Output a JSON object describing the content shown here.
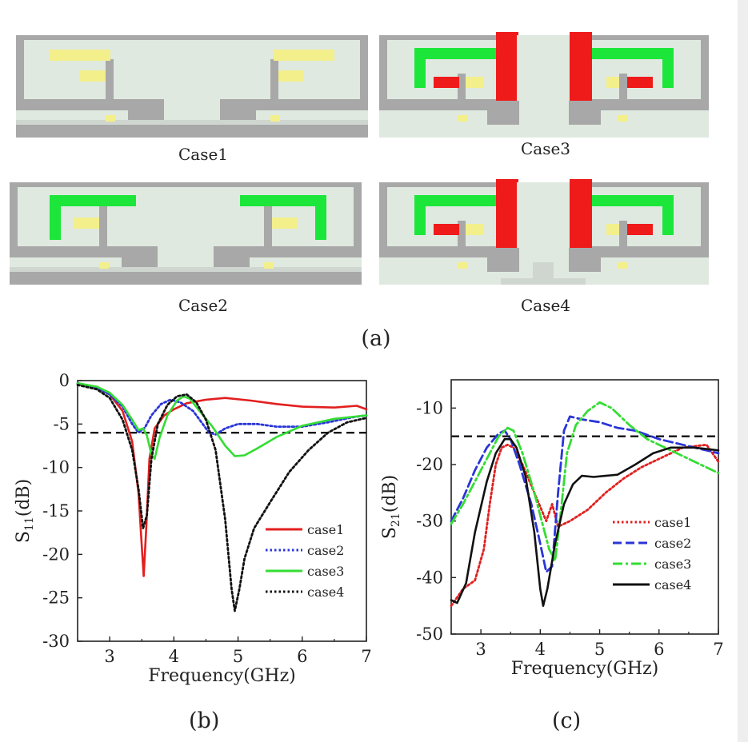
{
  "figure": {
    "panel_a": {
      "label": "(a)",
      "captions": [
        "Case1",
        "Case2",
        "Case3",
        "Case4"
      ]
    },
    "panel_b_label": "(b)",
    "panel_c_label": "(c)"
  },
  "colors": {
    "board_fill": "#dfe9e0",
    "metal_gray": "#a8a8a8",
    "strip_green": "#1de63a",
    "stub_red": "#ef1b1b",
    "pad_yellow": "#f3ef8a",
    "case1": "#e21f1f",
    "case2": "#2a35d8",
    "case3": "#33dd33",
    "case4": "#111111"
  },
  "chart_data": [
    {
      "type": "line",
      "panel": "(b)",
      "title": "",
      "xlabel": "Frequency(GHz)",
      "ylabel": "S11(dB)",
      "ylabel_main": "S",
      "ylabel_sub": "11",
      "ylabel_unit": "(dB)",
      "xlim": [
        2.5,
        7
      ],
      "ylim": [
        -30,
        0
      ],
      "xticks": [
        3,
        4,
        5,
        6,
        7
      ],
      "yticks": [
        0,
        -5,
        -10,
        -15,
        -20,
        -25,
        -30
      ],
      "grid": false,
      "legend_position": "lower-right",
      "reference_line": -6,
      "series": [
        {
          "name": "case1",
          "color": "#e21f1f",
          "dash": "solid",
          "points": [
            [
              2.5,
              -0.3
            ],
            [
              2.8,
              -0.8
            ],
            [
              3.0,
              -1.6
            ],
            [
              3.2,
              -3.5
            ],
            [
              3.35,
              -7
            ],
            [
              3.45,
              -13
            ],
            [
              3.5,
              -19
            ],
            [
              3.53,
              -22.5
            ],
            [
              3.57,
              -17
            ],
            [
              3.62,
              -9
            ],
            [
              3.7,
              -5.5
            ],
            [
              3.85,
              -4
            ],
            [
              4.0,
              -3.3
            ],
            [
              4.2,
              -2.6
            ],
            [
              4.5,
              -2.2
            ],
            [
              4.8,
              -2.0
            ],
            [
              5.2,
              -2.3
            ],
            [
              5.6,
              -2.7
            ],
            [
              6.0,
              -3.0
            ],
            [
              6.5,
              -3.1
            ],
            [
              6.85,
              -2.9
            ],
            [
              7.0,
              -3.3
            ]
          ]
        },
        {
          "name": "case2",
          "color": "#2a35d8",
          "dash": "dot",
          "points": [
            [
              2.5,
              -0.3
            ],
            [
              2.8,
              -0.8
            ],
            [
              3.0,
              -1.6
            ],
            [
              3.2,
              -3.0
            ],
            [
              3.35,
              -5.0
            ],
            [
              3.45,
              -6.0
            ],
            [
              3.55,
              -5.4
            ],
            [
              3.65,
              -4.0
            ],
            [
              3.8,
              -2.7
            ],
            [
              3.95,
              -2.2
            ],
            [
              4.1,
              -2.5
            ],
            [
              4.3,
              -3.5
            ],
            [
              4.45,
              -5.0
            ],
            [
              4.55,
              -6.0
            ],
            [
              4.65,
              -6.2
            ],
            [
              4.8,
              -5.5
            ],
            [
              5.0,
              -5.0
            ],
            [
              5.3,
              -5.0
            ],
            [
              5.6,
              -5.3
            ],
            [
              6.0,
              -5.3
            ],
            [
              6.4,
              -4.8
            ],
            [
              6.8,
              -4.2
            ],
            [
              7.0,
              -4.0
            ]
          ]
        },
        {
          "name": "case3",
          "color": "#33dd33",
          "dash": "solid",
          "points": [
            [
              2.5,
              -0.3
            ],
            [
              2.8,
              -0.7
            ],
            [
              3.0,
              -1.4
            ],
            [
              3.2,
              -2.8
            ],
            [
              3.35,
              -4.5
            ],
            [
              3.45,
              -5.7
            ],
            [
              3.52,
              -5.5
            ],
            [
              3.58,
              -6.3
            ],
            [
              3.65,
              -8.5
            ],
            [
              3.7,
              -9.0
            ],
            [
              3.78,
              -6.5
            ],
            [
              3.9,
              -4.0
            ],
            [
              4.05,
              -2.3
            ],
            [
              4.15,
              -1.8
            ],
            [
              4.25,
              -2.1
            ],
            [
              4.4,
              -3.5
            ],
            [
              4.6,
              -5.3
            ],
            [
              4.8,
              -7.5
            ],
            [
              4.95,
              -8.7
            ],
            [
              5.1,
              -8.6
            ],
            [
              5.3,
              -7.8
            ],
            [
              5.6,
              -6.5
            ],
            [
              6.0,
              -5.2
            ],
            [
              6.5,
              -4.4
            ],
            [
              7.0,
              -4.0
            ]
          ]
        },
        {
          "name": "case4",
          "color": "#111111",
          "dash": "dot",
          "points": [
            [
              2.5,
              -0.5
            ],
            [
              2.8,
              -1.0
            ],
            [
              3.0,
              -2.0
            ],
            [
              3.2,
              -4.5
            ],
            [
              3.35,
              -8.0
            ],
            [
              3.45,
              -12.5
            ],
            [
              3.52,
              -17.0
            ],
            [
              3.58,
              -15.5
            ],
            [
              3.65,
              -9.0
            ],
            [
              3.75,
              -5.0
            ],
            [
              3.9,
              -2.8
            ],
            [
              4.05,
              -1.8
            ],
            [
              4.2,
              -1.6
            ],
            [
              4.35,
              -2.5
            ],
            [
              4.5,
              -4.5
            ],
            [
              4.65,
              -8.0
            ],
            [
              4.8,
              -16.0
            ],
            [
              4.9,
              -24.0
            ],
            [
              4.95,
              -26.5
            ],
            [
              5.02,
              -24.0
            ],
            [
              5.1,
              -20.5
            ],
            [
              5.25,
              -17.0
            ],
            [
              5.5,
              -14.0
            ],
            [
              5.8,
              -10.5
            ],
            [
              6.1,
              -8.0
            ],
            [
              6.4,
              -6.0
            ],
            [
              6.7,
              -4.8
            ],
            [
              7.0,
              -4.3
            ]
          ]
        }
      ]
    },
    {
      "type": "line",
      "panel": "(c)",
      "title": "",
      "xlabel": "Frequency(GHz)",
      "ylabel": "S21(dB)",
      "ylabel_main": "S",
      "ylabel_sub": "21",
      "ylabel_unit": "(dB)",
      "xlim": [
        2.5,
        7
      ],
      "ylim": [
        -50,
        -5
      ],
      "xticks": [
        3,
        4,
        5,
        6,
        7
      ],
      "yticks": [
        -10,
        -20,
        -30,
        -40,
        -50
      ],
      "grid": false,
      "legend_position": "lower-right",
      "reference_line": -15,
      "series": [
        {
          "name": "case1",
          "color": "#e21f1f",
          "dash": "dot",
          "points": [
            [
              2.5,
              -45
            ],
            [
              2.7,
              -42
            ],
            [
              2.9,
              -40.5
            ],
            [
              3.05,
              -35
            ],
            [
              3.15,
              -27
            ],
            [
              3.25,
              -20
            ],
            [
              3.35,
              -17
            ],
            [
              3.45,
              -16.5
            ],
            [
              3.55,
              -17
            ],
            [
              3.7,
              -20
            ],
            [
              3.9,
              -25
            ],
            [
              4.1,
              -30
            ],
            [
              4.2,
              -27
            ],
            [
              4.3,
              -31
            ],
            [
              4.5,
              -30
            ],
            [
              4.8,
              -28
            ],
            [
              5.1,
              -25
            ],
            [
              5.4,
              -22.5
            ],
            [
              5.7,
              -20.5
            ],
            [
              6.0,
              -19
            ],
            [
              6.4,
              -17
            ],
            [
              6.8,
              -16.5
            ],
            [
              7.0,
              -19.5
            ]
          ]
        },
        {
          "name": "case2",
          "color": "#2a35d8",
          "dash": "dash",
          "points": [
            [
              2.5,
              -30
            ],
            [
              2.7,
              -26
            ],
            [
              2.9,
              -21
            ],
            [
              3.1,
              -17
            ],
            [
              3.3,
              -14.5
            ],
            [
              3.4,
              -14
            ],
            [
              3.5,
              -15.5
            ],
            [
              3.65,
              -20
            ],
            [
              3.85,
              -27
            ],
            [
              4.0,
              -34
            ],
            [
              4.1,
              -39
            ],
            [
              4.2,
              -38
            ],
            [
              4.3,
              -25
            ],
            [
              4.4,
              -14
            ],
            [
              4.5,
              -11.5
            ],
            [
              4.7,
              -12
            ],
            [
              5.0,
              -12.5
            ],
            [
              5.3,
              -13.5
            ],
            [
              5.6,
              -14
            ],
            [
              6.0,
              -15.5
            ],
            [
              6.4,
              -16.5
            ],
            [
              6.8,
              -17.5
            ],
            [
              7.0,
              -18
            ]
          ]
        },
        {
          "name": "case3",
          "color": "#33dd33",
          "dash": "dashdot",
          "points": [
            [
              2.5,
              -30.5
            ],
            [
              2.7,
              -27
            ],
            [
              2.9,
              -23
            ],
            [
              3.1,
              -19
            ],
            [
              3.3,
              -15
            ],
            [
              3.45,
              -13.5
            ],
            [
              3.55,
              -14
            ],
            [
              3.7,
              -18
            ],
            [
              3.9,
              -25
            ],
            [
              4.05,
              -31
            ],
            [
              4.15,
              -35
            ],
            [
              4.25,
              -37
            ],
            [
              4.35,
              -28
            ],
            [
              4.45,
              -18
            ],
            [
              4.6,
              -13
            ],
            [
              4.8,
              -10.5
            ],
            [
              5.0,
              -9
            ],
            [
              5.2,
              -10
            ],
            [
              5.5,
              -13
            ],
            [
              5.8,
              -15.5
            ],
            [
              6.2,
              -17.5
            ],
            [
              6.6,
              -19.5
            ],
            [
              7.0,
              -21.5
            ]
          ]
        },
        {
          "name": "case4",
          "color": "#111111",
          "dash": "solid",
          "points": [
            [
              2.5,
              -44
            ],
            [
              2.6,
              -44.5
            ],
            [
              2.75,
              -41
            ],
            [
              2.9,
              -32
            ],
            [
              3.1,
              -23
            ],
            [
              3.25,
              -18
            ],
            [
              3.4,
              -15.5
            ],
            [
              3.5,
              -15.5
            ],
            [
              3.6,
              -17
            ],
            [
              3.75,
              -22
            ],
            [
              3.9,
              -32
            ],
            [
              4.0,
              -42
            ],
            [
              4.05,
              -45
            ],
            [
              4.12,
              -42
            ],
            [
              4.25,
              -34
            ],
            [
              4.4,
              -27
            ],
            [
              4.55,
              -23.5
            ],
            [
              4.7,
              -22
            ],
            [
              4.9,
              -22.2
            ],
            [
              5.1,
              -22
            ],
            [
              5.3,
              -21.8
            ],
            [
              5.6,
              -20
            ],
            [
              5.9,
              -18
            ],
            [
              6.2,
              -17
            ],
            [
              6.6,
              -17
            ],
            [
              7.0,
              -17.5
            ]
          ]
        }
      ]
    }
  ]
}
